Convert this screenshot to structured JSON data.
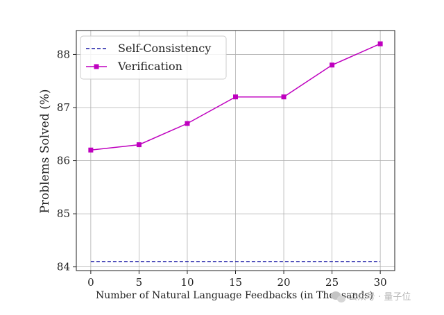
{
  "chart_data": {
    "type": "line",
    "title": "",
    "xlabel": "Number of Natural Language Feedbacks (in Thousands)",
    "ylabel": "Problems Solved (%)",
    "x": [
      0,
      5,
      10,
      15,
      20,
      25,
      30
    ],
    "xlim": [
      -1.5,
      31.5
    ],
    "ylim": [
      83.93,
      88.45
    ],
    "xticks": [
      0,
      5,
      10,
      15,
      20,
      25,
      30
    ],
    "yticks": [
      84,
      85,
      86,
      87,
      88
    ],
    "grid": true,
    "legend_position": "top-left",
    "series": [
      {
        "name": "Self-Consistency",
        "values": [
          84.1,
          84.1,
          84.1,
          84.1,
          84.1,
          84.1,
          84.1
        ],
        "color": "#1a1aa6",
        "line_style": "dashed",
        "marker": "none"
      },
      {
        "name": "Verification",
        "values": [
          86.2,
          86.3,
          86.7,
          87.2,
          87.2,
          87.8,
          88.2
        ],
        "color": "#bf00bf",
        "line_style": "solid",
        "marker": "square"
      }
    ]
  },
  "watermark": {
    "text": "公众号 · 量子位",
    "icon": "wechat-icon"
  }
}
